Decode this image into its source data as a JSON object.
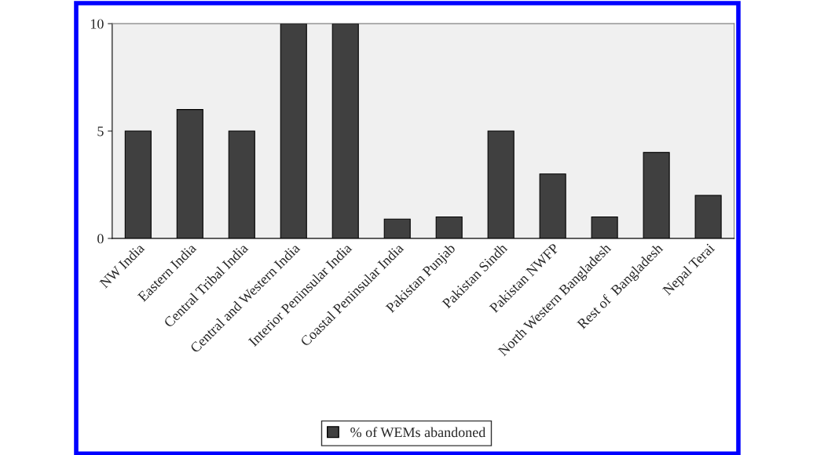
{
  "chart_data": {
    "type": "bar",
    "categories": [
      "NW India",
      "Eastern India",
      "Central Tribal India",
      "Central and Western India",
      "Interior Peninsular India",
      "Coastal Peninsular India",
      "Pakistan Punjab",
      "Pakistan Sindh",
      "Pakistan NWFP",
      "North Western Bangladesh",
      "Rest of  Bangladesh",
      "Nepal Terai"
    ],
    "series": [
      {
        "name": "% of WEMs abandoned",
        "color": "#404040",
        "values": [
          5,
          6,
          5,
          10,
          10,
          0.9,
          1,
          5,
          3,
          1,
          4,
          2
        ]
      }
    ],
    "ylim": [
      0,
      10
    ],
    "yticks": [
      0,
      5,
      10
    ],
    "grid": false,
    "legend": "bottom"
  }
}
